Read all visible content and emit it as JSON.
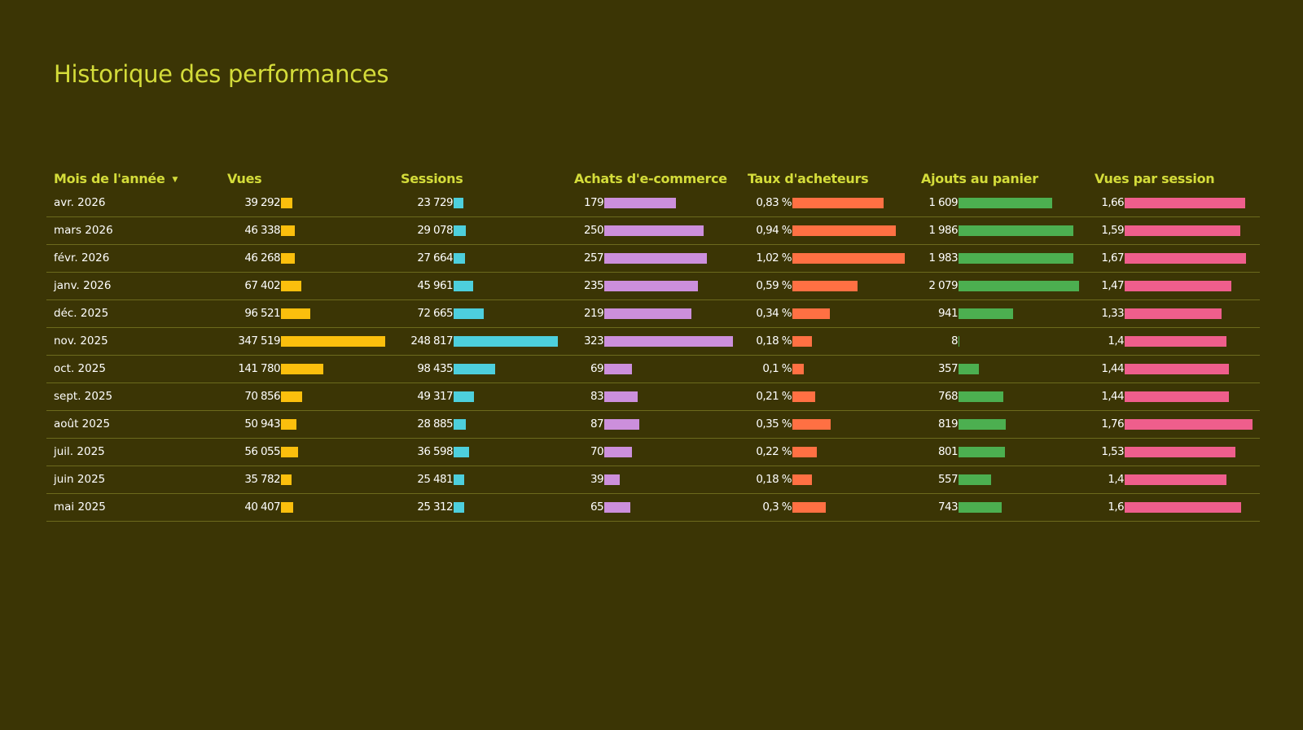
{
  "title": "Historique des performances",
  "headers": {
    "month": "Mois de l'année",
    "vues": "Vues",
    "sessions": "Sessions",
    "achats": "Achats d'e-commerce",
    "taux": "Taux d'acheteurs",
    "ajouts": "Ajouts au panier",
    "vps": "Vues par session"
  },
  "sort_icon": "sort-descending-icon",
  "colors": {
    "background": "#3b3505",
    "header_text": "#d4dc3a",
    "row_text": "#ffffff",
    "divider": "#6c6a1d",
    "vues": "#fbbf0d",
    "sessions": "#4dcfdd",
    "achats": "#cc8fdc",
    "taux": "#ff7043",
    "ajouts": "#4caf50",
    "vps": "#ef5e8c"
  },
  "rows": [
    {
      "month": "avr. 2026",
      "vues": "39 292",
      "vues_n": 39292,
      "sessions": "23 729",
      "sessions_n": 23729,
      "achats": "179",
      "achats_n": 179,
      "taux": "0,83 %",
      "taux_n": 0.83,
      "ajouts": "1 609",
      "ajouts_n": 1609,
      "vps": "1,66",
      "vps_n": 1.66
    },
    {
      "month": "mars 2026",
      "vues": "46 338",
      "vues_n": 46338,
      "sessions": "29 078",
      "sessions_n": 29078,
      "achats": "250",
      "achats_n": 250,
      "taux": "0,94 %",
      "taux_n": 0.94,
      "ajouts": "1 986",
      "ajouts_n": 1986,
      "vps": "1,59",
      "vps_n": 1.59
    },
    {
      "month": "févr. 2026",
      "vues": "46 268",
      "vues_n": 46268,
      "sessions": "27 664",
      "sessions_n": 27664,
      "achats": "257",
      "achats_n": 257,
      "taux": "1,02 %",
      "taux_n": 1.02,
      "ajouts": "1 983",
      "ajouts_n": 1983,
      "vps": "1,67",
      "vps_n": 1.67
    },
    {
      "month": "janv. 2026",
      "vues": "67 402",
      "vues_n": 67402,
      "sessions": "45 961",
      "sessions_n": 45961,
      "achats": "235",
      "achats_n": 235,
      "taux": "0,59 %",
      "taux_n": 0.59,
      "ajouts": "2 079",
      "ajouts_n": 2079,
      "vps": "1,47",
      "vps_n": 1.47
    },
    {
      "month": "déc. 2025",
      "vues": "96 521",
      "vues_n": 96521,
      "sessions": "72 665",
      "sessions_n": 72665,
      "achats": "219",
      "achats_n": 219,
      "taux": "0,34 %",
      "taux_n": 0.34,
      "ajouts": "941",
      "ajouts_n": 941,
      "vps": "1,33",
      "vps_n": 1.33
    },
    {
      "month": "nov. 2025",
      "vues": "347 519",
      "vues_n": 347519,
      "sessions": "248 817",
      "sessions_n": 248817,
      "achats": "323",
      "achats_n": 323,
      "taux": "0,18 %",
      "taux_n": 0.18,
      "ajouts": "8",
      "ajouts_n": 8,
      "vps": "1,4",
      "vps_n": 1.4
    },
    {
      "month": "oct. 2025",
      "vues": "141 780",
      "vues_n": 141780,
      "sessions": "98 435",
      "sessions_n": 98435,
      "achats": "69",
      "achats_n": 69,
      "taux": "0,1 %",
      "taux_n": 0.1,
      "ajouts": "357",
      "ajouts_n": 357,
      "vps": "1,44",
      "vps_n": 1.44
    },
    {
      "month": "sept. 2025",
      "vues": "70 856",
      "vues_n": 70856,
      "sessions": "49 317",
      "sessions_n": 49317,
      "achats": "83",
      "achats_n": 83,
      "taux": "0,21 %",
      "taux_n": 0.21,
      "ajouts": "768",
      "ajouts_n": 768,
      "vps": "1,44",
      "vps_n": 1.44
    },
    {
      "month": "août 2025",
      "vues": "50 943",
      "vues_n": 50943,
      "sessions": "28 885",
      "sessions_n": 28885,
      "achats": "87",
      "achats_n": 87,
      "taux": "0,35 %",
      "taux_n": 0.35,
      "ajouts": "819",
      "ajouts_n": 819,
      "vps": "1,76",
      "vps_n": 1.76
    },
    {
      "month": "juil. 2025",
      "vues": "56 055",
      "vues_n": 56055,
      "sessions": "36 598",
      "sessions_n": 36598,
      "achats": "70",
      "achats_n": 70,
      "taux": "0,22 %",
      "taux_n": 0.22,
      "ajouts": "801",
      "ajouts_n": 801,
      "vps": "1,53",
      "vps_n": 1.53
    },
    {
      "month": "juin 2025",
      "vues": "35 782",
      "vues_n": 35782,
      "sessions": "25 481",
      "sessions_n": 25481,
      "achats": "39",
      "achats_n": 39,
      "taux": "0,18 %",
      "taux_n": 0.18,
      "ajouts": "557",
      "ajouts_n": 557,
      "vps": "1,4",
      "vps_n": 1.4
    },
    {
      "month": "mai 2025",
      "vues": "40 407",
      "vues_n": 40407,
      "sessions": "25 312",
      "sessions_n": 25312,
      "achats": "65",
      "achats_n": 65,
      "taux": "0,3 %",
      "taux_n": 0.3,
      "ajouts": "743",
      "ajouts_n": 743,
      "vps": "1,6",
      "vps_n": 1.6
    }
  ]
}
